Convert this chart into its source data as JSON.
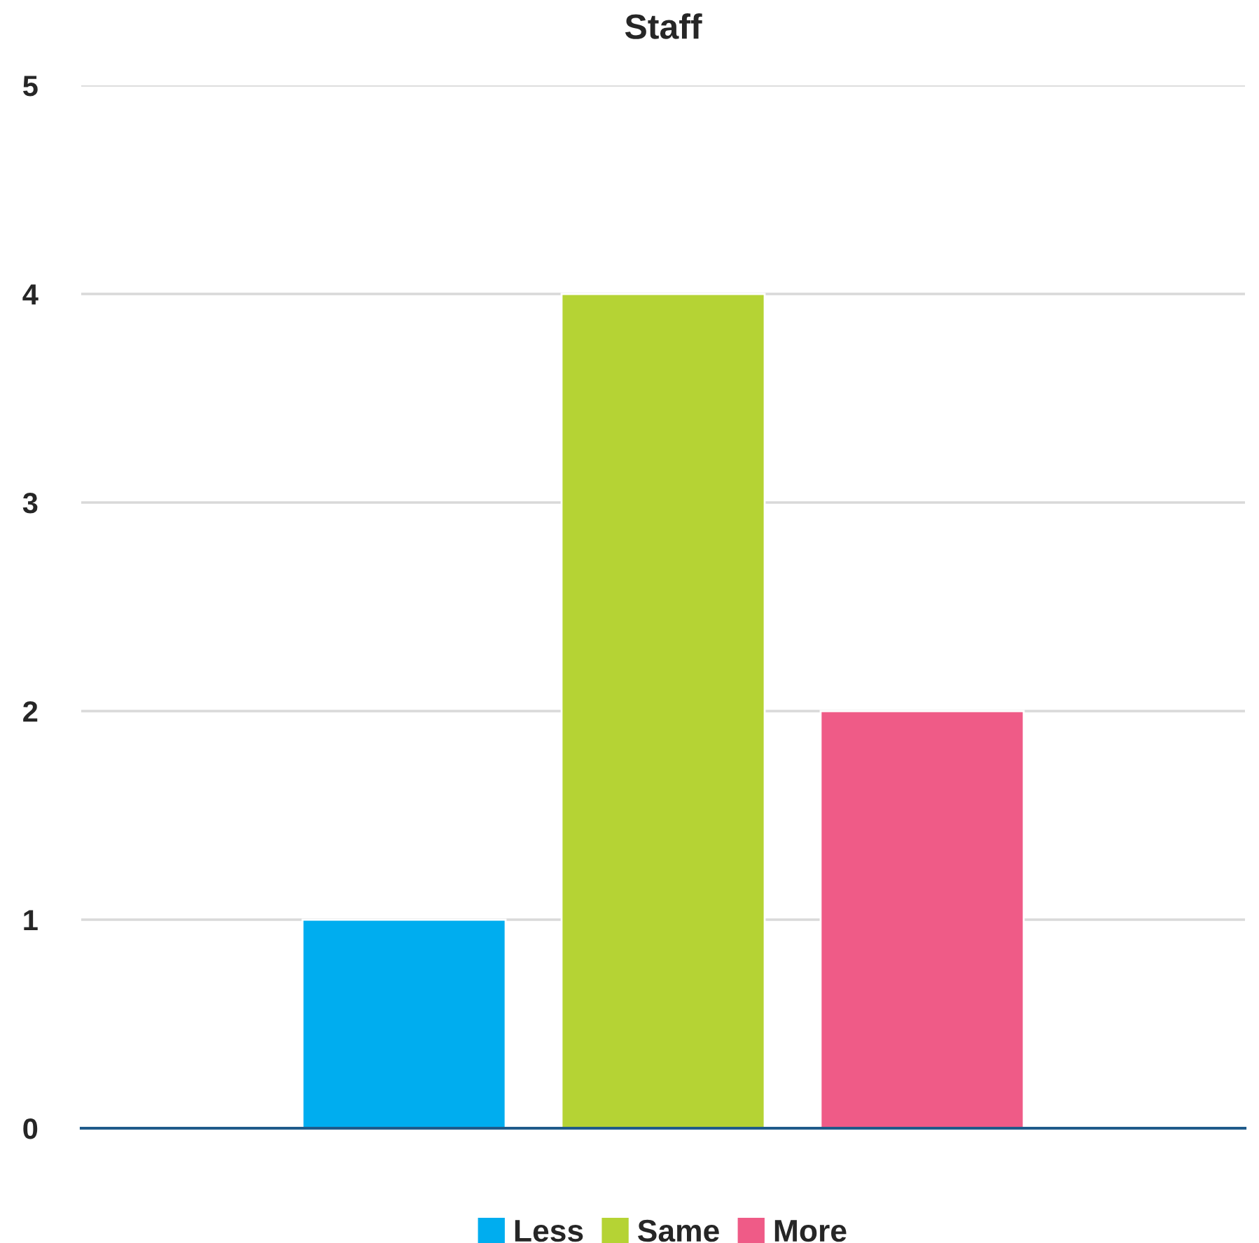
{
  "chart_data": {
    "type": "bar",
    "title": "Staff",
    "categories": [
      null
    ],
    "series": [
      {
        "name": "Less",
        "color": "#00adef",
        "values": [
          1
        ]
      },
      {
        "name": "Same",
        "color": "#b5d334",
        "values": [
          4
        ]
      },
      {
        "name": "More",
        "color": "#ef5b87",
        "values": [
          2
        ]
      }
    ],
    "ylim": [
      0,
      5
    ],
    "yticks": [
      0,
      1,
      2,
      3,
      4,
      5
    ],
    "grid": "y",
    "legend": "bottom"
  }
}
